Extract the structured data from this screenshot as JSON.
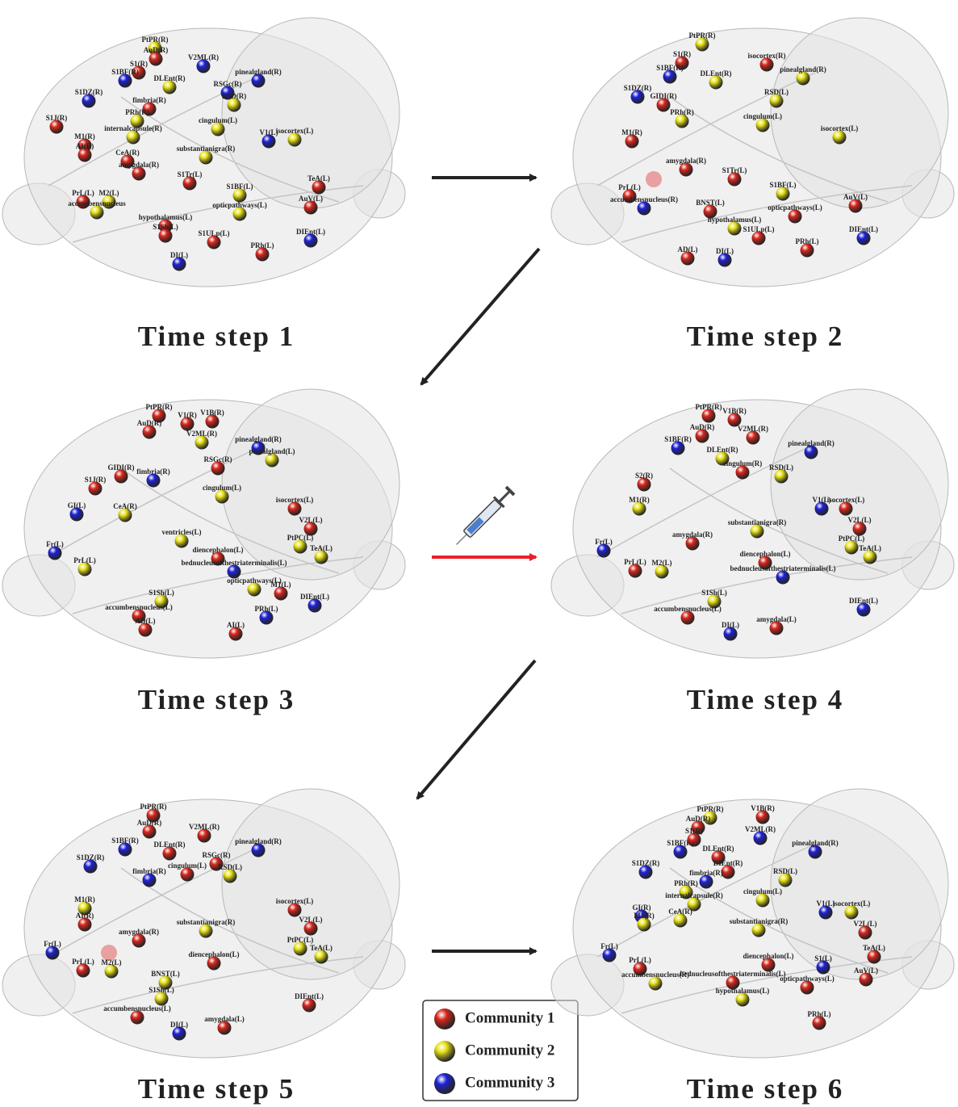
{
  "legend": [
    {
      "label": "Community 1",
      "color": "#d8281e"
    },
    {
      "label": "Community 2",
      "color": "#e8e21a"
    },
    {
      "label": "Community 3",
      "color": "#1f22d6"
    }
  ],
  "panels": [
    {
      "caption": "Time step 1",
      "nodes": [
        {
          "label": "PtPR(R)",
          "community": 2
        },
        {
          "label": "AuD(R)",
          "community": 1
        },
        {
          "label": "S1(R)",
          "community": 1
        },
        {
          "label": "S1BF(R)",
          "community": 3
        },
        {
          "label": "V2ML(R)",
          "community": 3
        },
        {
          "label": "DLEnt(R)",
          "community": 2
        },
        {
          "label": "pinealgland(R)",
          "community": 3
        },
        {
          "label": "S1DZ(R)",
          "community": 3
        },
        {
          "label": "RSGc(R)",
          "community": 3
        },
        {
          "label": "RSD(R)",
          "community": 2
        },
        {
          "label": "fimbria(R)",
          "community": 1
        },
        {
          "label": "PRh(R)",
          "community": 2
        },
        {
          "label": "S1J(R)",
          "community": 1
        },
        {
          "label": "cingulum(L)",
          "community": 2
        },
        {
          "label": "internalcapsule(R)",
          "community": 2
        },
        {
          "label": "M1(R)",
          "community": 1
        },
        {
          "label": "AI(R)",
          "community": 1
        },
        {
          "label": "V1(L)",
          "community": 3
        },
        {
          "label": "isocortex(L)",
          "community": 2
        },
        {
          "label": "CeA(R)",
          "community": 1
        },
        {
          "label": "substantianigra(R)",
          "community": 2
        },
        {
          "label": "amygdala(R)",
          "community": 1
        },
        {
          "label": "S1Tr(L)",
          "community": 1
        },
        {
          "label": "TeA(L)",
          "community": 1
        },
        {
          "label": "S1BF(L)",
          "community": 2
        },
        {
          "label": "PrL(L)",
          "community": 1
        },
        {
          "label": "M2(L)",
          "community": 2
        },
        {
          "label": "AuV(L)",
          "community": 1
        },
        {
          "label": "accumbensnucleus",
          "community": 2
        },
        {
          "label": "opticpathways(L)",
          "community": 2
        },
        {
          "label": "hypothalamus(L)",
          "community": 1
        },
        {
          "label": "S1Sh(L)",
          "community": 1
        },
        {
          "label": "S1ULp(L)",
          "community": 1
        },
        {
          "label": "DIEnt(L)",
          "community": 3
        },
        {
          "label": "PRh(L)",
          "community": 1
        },
        {
          "label": "DI(L)",
          "community": 3
        }
      ]
    },
    {
      "caption": "Time step 2",
      "nodes": [
        {
          "label": "PtPR(R)",
          "community": 2
        },
        {
          "label": "isocortex(R)",
          "community": 1
        },
        {
          "label": "S1(R)",
          "community": 1
        },
        {
          "label": "S1BF(R)",
          "community": 3
        },
        {
          "label": "pinealgland(R)",
          "community": 2
        },
        {
          "label": "DLEnt(R)",
          "community": 2
        },
        {
          "label": "S1DZ(R)",
          "community": 3
        },
        {
          "label": "RSD(L)",
          "community": 2
        },
        {
          "label": "GIDI(R)",
          "community": 1
        },
        {
          "label": "PRh(R)",
          "community": 2
        },
        {
          "label": "cingulum(L)",
          "community": 2
        },
        {
          "label": "isocortex(L)",
          "community": 2
        },
        {
          "label": "M1(R)",
          "community": 1
        },
        {
          "label": "amygdala(R)",
          "community": 1
        },
        {
          "label": "S1Tr(L)",
          "community": 1
        },
        {
          "label": "PrL(L)",
          "community": 1
        },
        {
          "label": "accumbensnucleus(R)",
          "community": 3
        },
        {
          "label": "BNST(L)",
          "community": 1
        },
        {
          "label": "S1BF(L)",
          "community": 2
        },
        {
          "label": "opticpathways(L)",
          "community": 1
        },
        {
          "label": "AuV(L)",
          "community": 1
        },
        {
          "label": "hypothalamus(L)",
          "community": 2
        },
        {
          "label": "S1ULp(L)",
          "community": 1
        },
        {
          "label": "DIEnt(L)",
          "community": 3
        },
        {
          "label": "PRh(L)",
          "community": 1
        },
        {
          "label": "AD(L)",
          "community": 1
        },
        {
          "label": "DI(L)",
          "community": 3
        }
      ]
    },
    {
      "caption": "Time step 3",
      "nodes": [
        {
          "label": "PtPR(R)",
          "community": 1
        },
        {
          "label": "V1(R)",
          "community": 1
        },
        {
          "label": "V1B(R)",
          "community": 1
        },
        {
          "label": "AuD(R)",
          "community": 1
        },
        {
          "label": "V2ML(R)",
          "community": 2
        },
        {
          "label": "pinealgland(R)",
          "community": 3
        },
        {
          "label": "pinealgland(L)",
          "community": 2
        },
        {
          "label": "GIDI(R)",
          "community": 1
        },
        {
          "label": "S1J(R)",
          "community": 1
        },
        {
          "label": "RSGc(R)",
          "community": 1
        },
        {
          "label": "fimbria(R)",
          "community": 3
        },
        {
          "label": "cingulum(L)",
          "community": 2
        },
        {
          "label": "GI(L)",
          "community": 3
        },
        {
          "label": "isocortex(L)",
          "community": 1
        },
        {
          "label": "CeA(R)",
          "community": 2
        },
        {
          "label": "V2L(L)",
          "community": 1
        },
        {
          "label": "ventricles(L)",
          "community": 2
        },
        {
          "label": "Fr(L)",
          "community": 3
        },
        {
          "label": "PtPC(L)",
          "community": 2
        },
        {
          "label": "TeA(L)",
          "community": 2
        },
        {
          "label": "PrL(L)",
          "community": 2
        },
        {
          "label": "diencephalon(L)",
          "community": 1
        },
        {
          "label": "bednucleusofthestriaterminalis(L)",
          "community": 3
        },
        {
          "label": "opticpathways(L)",
          "community": 2
        },
        {
          "label": "M1(L)",
          "community": 1
        },
        {
          "label": "S1Sh(L)",
          "community": 2
        },
        {
          "label": "accumbensnucleus(L)",
          "community": 1
        },
        {
          "label": "DIEnt(L)",
          "community": 3
        },
        {
          "label": "PRh(L)",
          "community": 3
        },
        {
          "label": "AD(L)",
          "community": 1
        },
        {
          "label": "AI(L)",
          "community": 1
        }
      ]
    },
    {
      "caption": "Time step 4",
      "nodes": [
        {
          "label": "PtPR(R)",
          "community": 1
        },
        {
          "label": "V1B(R)",
          "community": 1
        },
        {
          "label": "AuD(R)",
          "community": 1
        },
        {
          "label": "V2ML(R)",
          "community": 1
        },
        {
          "label": "S1BF(R)",
          "community": 3
        },
        {
          "label": "pinealgland(R)",
          "community": 3
        },
        {
          "label": "DLEnt(R)",
          "community": 2
        },
        {
          "label": "RSD(L)",
          "community": 2
        },
        {
          "label": "S2(R)",
          "community": 1
        },
        {
          "label": "cingulum(R)",
          "community": 1
        },
        {
          "label": "M1(R)",
          "community": 2
        },
        {
          "label": "V1(L)",
          "community": 3
        },
        {
          "label": "isocortex(L)",
          "community": 1
        },
        {
          "label": "substantianigra(R)",
          "community": 2
        },
        {
          "label": "V2L(L)",
          "community": 1
        },
        {
          "label": "amygdala(R)",
          "community": 1
        },
        {
          "label": "Fr(L)",
          "community": 3
        },
        {
          "label": "PtPC(L)",
          "community": 2
        },
        {
          "label": "TeA(L)",
          "community": 2
        },
        {
          "label": "diencephalon(L)",
          "community": 1
        },
        {
          "label": "PrL(L)",
          "community": 1
        },
        {
          "label": "M2(L)",
          "community": 2
        },
        {
          "label": "bednucleusofthestriaterminalis(L)",
          "community": 3
        },
        {
          "label": "S1Sh(L)",
          "community": 2
        },
        {
          "label": "accumbensnucleus(L)",
          "community": 1
        },
        {
          "label": "DIEnt(L)",
          "community": 3
        },
        {
          "label": "amygdala(L)",
          "community": 1
        },
        {
          "label": "DI(L)",
          "community": 3
        }
      ]
    },
    {
      "caption": "Time step 5",
      "nodes": [
        {
          "label": "PtPR(R)",
          "community": 1
        },
        {
          "label": "AuD(R)",
          "community": 1
        },
        {
          "label": "V2ML(R)",
          "community": 1
        },
        {
          "label": "S1BF(R)",
          "community": 3
        },
        {
          "label": "pinealgland(R)",
          "community": 3
        },
        {
          "label": "DLEnt(R)",
          "community": 1
        },
        {
          "label": "S1DZ(R)",
          "community": 3
        },
        {
          "label": "RSGc(R)",
          "community": 1
        },
        {
          "label": "RSD(L)",
          "community": 2
        },
        {
          "label": "fimbria(R)",
          "community": 3
        },
        {
          "label": "cingulum(L)",
          "community": 1
        },
        {
          "label": "M1(R)",
          "community": 2
        },
        {
          "label": "isocortex(L)",
          "community": 1
        },
        {
          "label": "AI(R)",
          "community": 1
        },
        {
          "label": "substantianigra(R)",
          "community": 2
        },
        {
          "label": "V2L(L)",
          "community": 1
        },
        {
          "label": "amygdala(R)",
          "community": 1
        },
        {
          "label": "Fr(L)",
          "community": 3
        },
        {
          "label": "PtPC(L)",
          "community": 2
        },
        {
          "label": "TeA(L)",
          "community": 2
        },
        {
          "label": "diencephalon(L)",
          "community": 1
        },
        {
          "label": "PrL(L)",
          "community": 1
        },
        {
          "label": "M2(L)",
          "community": 2
        },
        {
          "label": "BNST(L)",
          "community": 2
        },
        {
          "label": "S1Sh(L)",
          "community": 2
        },
        {
          "label": "accumbensnucleus(L)",
          "community": 1
        },
        {
          "label": "DIEnt(L)",
          "community": 1
        },
        {
          "label": "amygdala(L)",
          "community": 1
        },
        {
          "label": "DI(L)",
          "community": 3
        }
      ]
    },
    {
      "caption": "Time step 6",
      "nodes": [
        {
          "label": "PtPR(R)",
          "community": 2
        },
        {
          "label": "V1B(R)",
          "community": 1
        },
        {
          "label": "AuD(R)",
          "community": 1
        },
        {
          "label": "V2ML(R)",
          "community": 3
        },
        {
          "label": "S1BF(R)",
          "community": 3
        },
        {
          "label": "S1(R)",
          "community": 1
        },
        {
          "label": "pinealgland(R)",
          "community": 3
        },
        {
          "label": "DLEnt(R)",
          "community": 1
        },
        {
          "label": "S1DZ(R)",
          "community": 3
        },
        {
          "label": "DIEnt(R)",
          "community": 1
        },
        {
          "label": "RSD(L)",
          "community": 2
        },
        {
          "label": "fimbria(R)",
          "community": 3
        },
        {
          "label": "PRh(R)",
          "community": 2
        },
        {
          "label": "cingulum(L)",
          "community": 2
        },
        {
          "label": "V1(L)",
          "community": 3
        },
        {
          "label": "isocortex(L)",
          "community": 2
        },
        {
          "label": "internalcapsule(R)",
          "community": 2
        },
        {
          "label": "GI(R)",
          "community": 3
        },
        {
          "label": "CeA(R)",
          "community": 2
        },
        {
          "label": "M1(R)",
          "community": 2
        },
        {
          "label": "substantianigra(R)",
          "community": 2
        },
        {
          "label": "V2L(L)",
          "community": 1
        },
        {
          "label": "Fr(L)",
          "community": 3
        },
        {
          "label": "TeA(L)",
          "community": 1
        },
        {
          "label": "diencephalon(L)",
          "community": 1
        },
        {
          "label": "S1(L)",
          "community": 3
        },
        {
          "label": "PrL(L)",
          "community": 1
        },
        {
          "label": "AuV(L)",
          "community": 1
        },
        {
          "label": "accumbensnucleus(R)",
          "community": 2
        },
        {
          "label": "bednucleusofthestriaterminalis(L)",
          "community": 1
        },
        {
          "label": "opticpathways(L)",
          "community": 1
        },
        {
          "label": "hypothalamus(L)",
          "community": 2
        },
        {
          "label": "PRh(L)",
          "community": 1
        }
      ]
    }
  ]
}
